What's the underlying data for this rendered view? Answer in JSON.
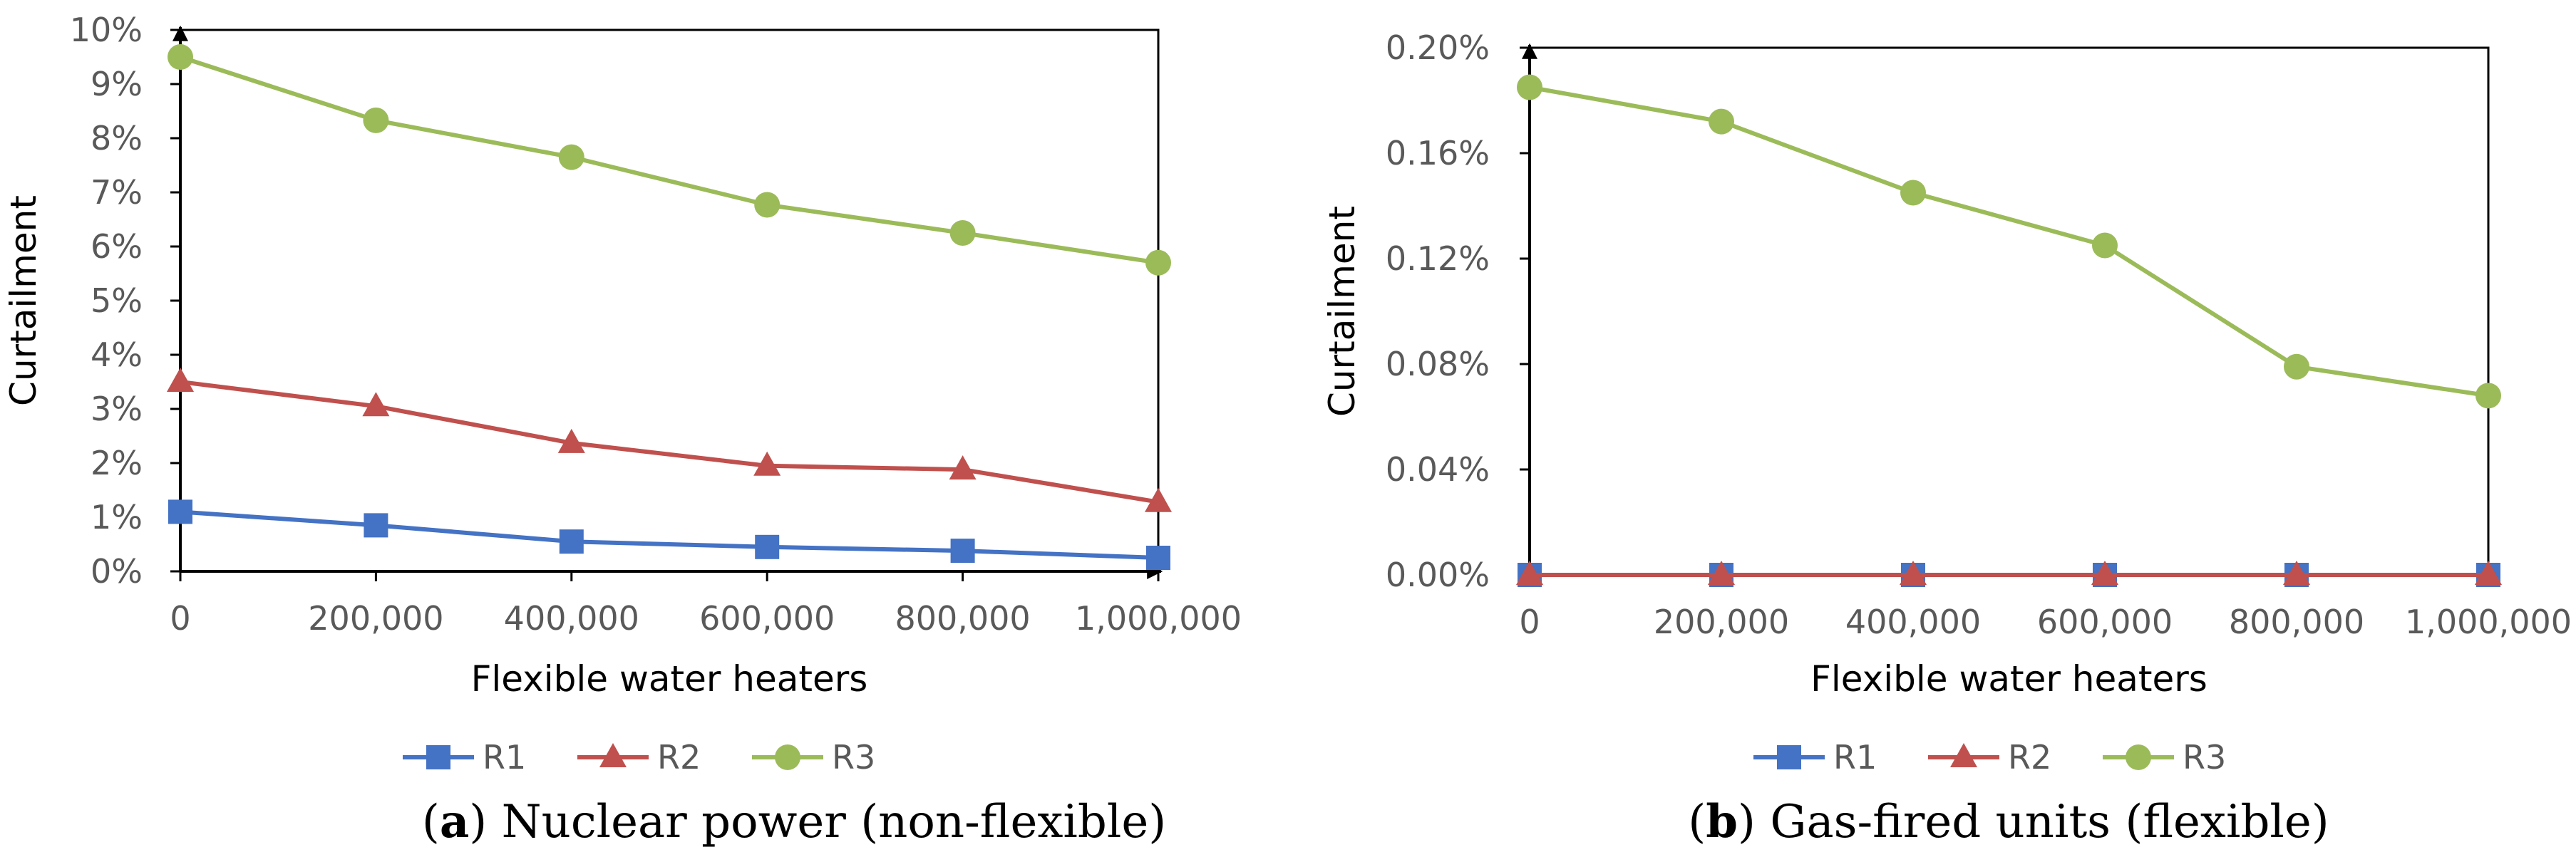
{
  "chart_data": [
    {
      "type": "line",
      "caption": {
        "letter": "a",
        "text": "Nuclear power (non-flexible)"
      },
      "xlabel": "Flexible water heaters",
      "ylabel": "Curtailment",
      "categories": [
        "0",
        "200,000",
        "400,000",
        "600,000",
        "800,000",
        "1,000,000"
      ],
      "x": [
        0,
        200000,
        400000,
        600000,
        800000,
        1000000
      ],
      "ylim": [
        0,
        10
      ],
      "yticks": [
        0,
        1,
        2,
        3,
        4,
        5,
        6,
        7,
        8,
        9,
        10
      ],
      "ytick_labels": [
        "0%",
        "1%",
        "2%",
        "3%",
        "4%",
        "5%",
        "6%",
        "7%",
        "8%",
        "9%",
        "10%"
      ],
      "grid": false,
      "legend": "bottom",
      "series": [
        {
          "name": "R1",
          "marker": "square",
          "color": "#4472C4",
          "values": [
            1.1,
            0.85,
            0.55,
            0.45,
            0.38,
            0.25
          ]
        },
        {
          "name": "R2",
          "marker": "triangle",
          "color": "#C0504D",
          "values": [
            3.5,
            3.05,
            2.37,
            1.95,
            1.88,
            1.28
          ]
        },
        {
          "name": "R3",
          "marker": "circle",
          "color": "#9BBB59",
          "values": [
            9.5,
            8.33,
            7.65,
            6.77,
            6.25,
            5.7
          ]
        }
      ]
    },
    {
      "type": "line",
      "caption": {
        "letter": "b",
        "text": "Gas-fired units (flexible)"
      },
      "xlabel": "Flexible water heaters",
      "ylabel": "Curtailment",
      "categories": [
        "0",
        "200,000",
        "400,000",
        "600,000",
        "800,000",
        "1,000,000"
      ],
      "x": [
        0,
        200000,
        400000,
        600000,
        800000,
        1000000
      ],
      "ylim": [
        0,
        0.2
      ],
      "yticks": [
        0,
        0.04,
        0.08,
        0.12,
        0.16,
        0.2
      ],
      "ytick_labels": [
        "0.00%",
        "0.04%",
        "0.08%",
        "0.12%",
        "0.16%",
        "0.20%"
      ],
      "grid": false,
      "legend": "bottom",
      "series": [
        {
          "name": "R1",
          "marker": "square",
          "color": "#4472C4",
          "values": [
            0,
            0,
            0,
            0,
            0,
            0
          ]
        },
        {
          "name": "R2",
          "marker": "triangle",
          "color": "#C0504D",
          "values": [
            0,
            0,
            0,
            0,
            0,
            0
          ]
        },
        {
          "name": "R3",
          "marker": "circle",
          "color": "#9BBB59",
          "values": [
            0.185,
            0.172,
            0.145,
            0.125,
            0.079,
            0.068
          ]
        }
      ]
    }
  ]
}
